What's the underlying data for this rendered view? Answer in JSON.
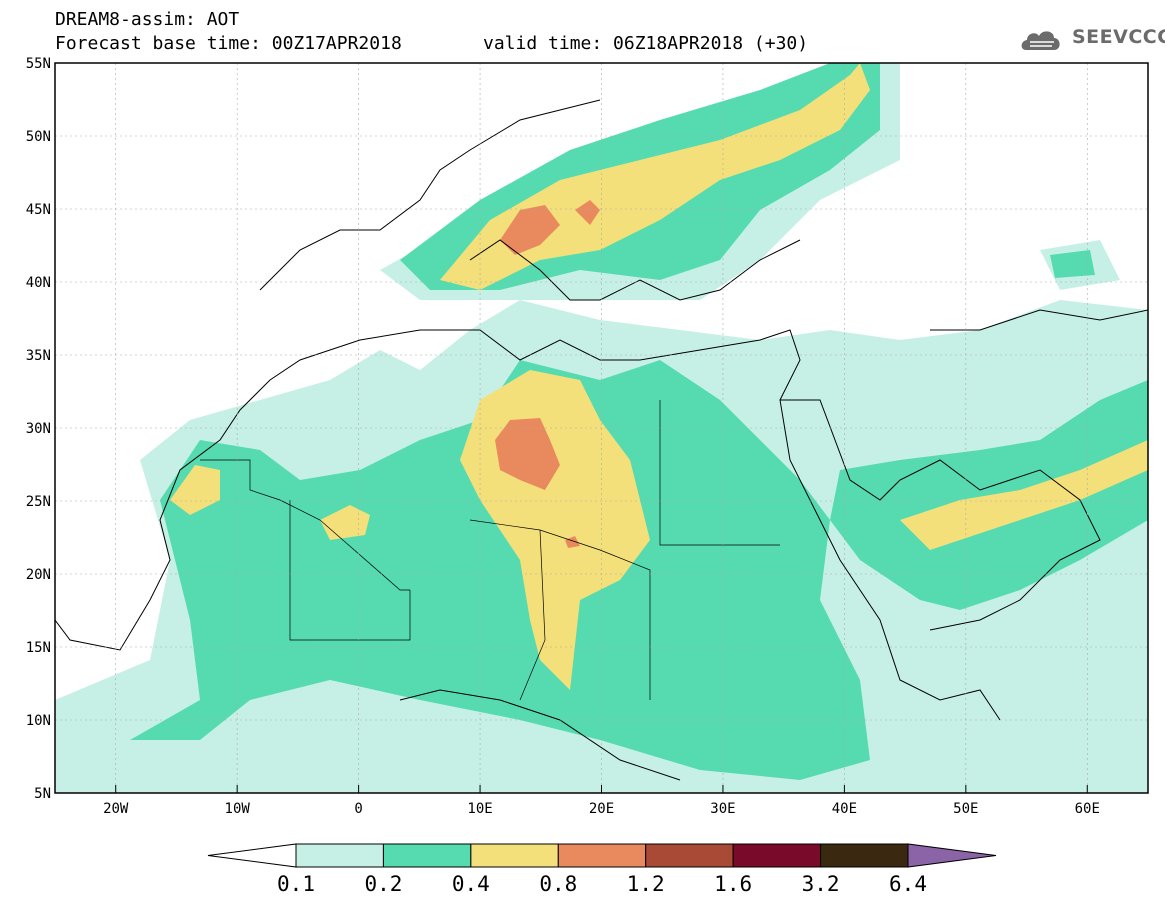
{
  "title": {
    "line1": "DREAM8-assim: AOT",
    "base_time": "Forecast base time: 00Z17APR2018",
    "valid_time": "valid time: 06Z18APR2018 (+30)"
  },
  "logo": {
    "text": "SEEVCCC",
    "icon": "cloud-icon"
  },
  "map": {
    "lat_labels": [
      "55N",
      "50N",
      "45N",
      "40N",
      "35N",
      "30N",
      "25N",
      "20N",
      "15N",
      "10N",
      "5N"
    ],
    "lon_labels": [
      "20W",
      "10W",
      "0",
      "10E",
      "20E",
      "30E",
      "40E",
      "50E",
      "60E"
    ]
  },
  "colorbar": {
    "labels": [
      "0.1",
      "0.2",
      "0.4",
      "0.8",
      "1.2",
      "1.6",
      "3.2",
      "6.4"
    ],
    "colors": [
      "#ffffff",
      "#c6f0e6",
      "#56dbb0",
      "#f4e07a",
      "#e98a5e",
      "#a94a36",
      "#7a0a2a",
      "#3a2810",
      "#8a64a6"
    ]
  }
}
